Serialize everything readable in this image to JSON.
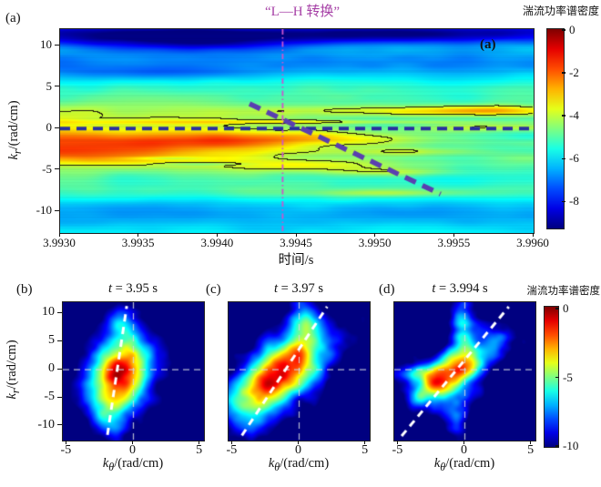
{
  "figure": {
    "outer_labels": {
      "a": "(a)",
      "b": "(b)",
      "c": "(c)",
      "d": "(d)"
    },
    "inner_label_a": "(a)",
    "title": "“L—H 转换”",
    "title_color": "#a640a6",
    "psd_label_top": "湍流功率谱密度",
    "psd_label_bottom": "湍流功率谱密度"
  },
  "chart_data": [
    {
      "id": "a",
      "type": "heatmap",
      "description": "Turbulence power spectral density S(kr,t) around the L-H transition",
      "xlabel": "时间/s",
      "ylabel_var": "k",
      "ylabel_sub": "r",
      "ylabel_rest": "/(rad/cm)",
      "xlim": [
        3.993,
        3.996
      ],
      "ylim": [
        -12.6,
        12.0
      ],
      "xticks": {
        "values": [
          3.993,
          3.9935,
          3.994,
          3.9945,
          3.995,
          3.9955,
          3.996
        ],
        "labels": [
          "3.9930",
          "3.9935",
          "3.9940",
          "3.9945",
          "3.9950",
          "3.9955",
          "3.9960"
        ]
      },
      "yticks": {
        "values": [
          10,
          5,
          0,
          -5,
          -10
        ],
        "labels": [
          "10",
          "5",
          "0",
          "-5",
          "-10"
        ]
      },
      "colorbar": {
        "label": "湍流功率谱密度",
        "range": [
          0,
          -9.3
        ],
        "ticks": {
          "values": [
            0,
            -2,
            -4,
            -6,
            -8
          ],
          "labels": [
            "0",
            "-2",
            "-4",
            "-6",
            "-8"
          ]
        }
      },
      "overlays": {
        "zero_line": {
          "k": 0,
          "color": "#2a2fa0"
        },
        "transition_line": {
          "t": 3.99441,
          "color": "#cc55cc"
        },
        "diagonal_line": {
          "from": [
            3.9942,
            3.0
          ],
          "to": [
            3.99541,
            -7.9
          ],
          "color": "#5a3fb0"
        }
      },
      "field": {
        "base": -5.4,
        "clim": [
          -9.25,
          -0.05
        ],
        "contour_level": -4,
        "bands": [
          {
            "c": 4.6,
            "s": 2.0,
            "a": 0.5
          },
          {
            "c": 8.0,
            "s": 2.0,
            "a": -1.1
          },
          {
            "c": 11.9,
            "s": 1.4,
            "a": -2.0
          },
          {
            "c": -10.3,
            "s": 1.6,
            "a": -0.9
          },
          {
            "c": -7.6,
            "s": 1.0,
            "a": 0.6
          }
        ],
        "ridge": {
          "c": -2.0,
          "s": 3.2,
          "amp_pre": 4.9,
          "amp_post": 1.35,
          "t0": 3.99435,
          "tw": 0.00022
        },
        "upper": {
          "c": 2.2,
          "s": 1.3,
          "amp_pre": 1.15,
          "amp_post": 0.85
        },
        "features": [
          {
            "t": 3.9934,
            "k": 10.8,
            "st": 0.0008,
            "sk": 1.2,
            "a": -1.7
          },
          {
            "t": 3.99405,
            "k": 10.2,
            "st": 0.0005,
            "sk": 1.0,
            "a": -1.3
          },
          {
            "t": 3.995,
            "k": 11.3,
            "st": 0.0013,
            "sk": 1.0,
            "a": -1.9
          },
          {
            "t": 3.9936,
            "k": 6.8,
            "st": 0.0006,
            "sk": 0.8,
            "a": -0.8
          },
          {
            "t": 3.9944,
            "k": 0.8,
            "st": 0.0015,
            "sk": 0.25,
            "a": 1.1
          },
          {
            "t": 3.9952,
            "k": 2.1,
            "st": 0.0008,
            "sk": 0.65,
            "a": 1.5
          },
          {
            "t": 3.9957,
            "k": 2.2,
            "st": 0.0004,
            "sk": 0.55,
            "a": 1.3
          },
          {
            "t": 3.9946,
            "k": -1.3,
            "st": 0.0008,
            "sk": 0.9,
            "a": 1.7
          },
          {
            "t": 3.9947,
            "k": -4.4,
            "st": 0.0007,
            "sk": 0.9,
            "a": 1.5
          },
          {
            "t": 3.9952,
            "k": -2.8,
            "st": 0.0005,
            "sk": 0.5,
            "a": 1.2
          },
          {
            "t": 3.9951,
            "k": -5.3,
            "st": 0.0004,
            "sk": 0.5,
            "a": 1.1
          },
          {
            "t": 3.99505,
            "k": -7.8,
            "st": 0.0005,
            "sk": 0.4,
            "a": 0.9
          },
          {
            "t": 3.9958,
            "k": 0.2,
            "st": 0.0004,
            "sk": 0.5,
            "a": 1.2
          },
          {
            "t": 3.99365,
            "k": -3.6,
            "st": 0.00025,
            "sk": 0.2,
            "a": -0.9
          },
          {
            "t": 3.9939,
            "k": -4.3,
            "st": 0.0003,
            "sk": 0.2,
            "a": -0.8
          }
        ],
        "noise_amp": 0.5,
        "streak_amp": 0.5,
        "seed": 11
      }
    },
    {
      "id": "b",
      "type": "heatmap",
      "title_var": "t",
      "title_rest": " = 3.95 s",
      "xlabel_var": "k",
      "xlabel_sub": "θ",
      "xlabel_rest": "/(rad/cm)",
      "ylabel_var": "k",
      "ylabel_sub": "r",
      "ylabel_rest": "/(rad/cm)",
      "xlim": [
        -5.3,
        5.3
      ],
      "ylim": [
        -12.6,
        12.0
      ],
      "xticks": {
        "values": [
          -5,
          0,
          5
        ],
        "labels": [
          "-5",
          "0",
          "5"
        ]
      },
      "yticks": {
        "values": [
          10,
          5,
          0,
          -5,
          -10
        ],
        "labels": [
          "10",
          "5",
          "0",
          "-5",
          "-10"
        ]
      },
      "clim": [
        -10,
        0
      ],
      "blob": {
        "cx": -1.15,
        "cy": -0.8,
        "shear": 0.065,
        "sx": 2.35,
        "sy": 7.0,
        "peak": 10.3
      },
      "arms": [
        {
          "x": -0.8,
          "sx": 1.3,
          "y": 9.0,
          "sy": 4.0,
          "a": 2.6
        },
        {
          "x": -1.6,
          "sx": 1.3,
          "y": -9.5,
          "sy": 3.5,
          "a": 2.4
        }
      ],
      "noise": {
        "amp": 1.55,
        "fx": 0.8,
        "fy": 0.36,
        "seed": 21
      },
      "white_line": {
        "x1": -1.95,
        "y1": -11.6,
        "x2": -0.5,
        "y2": 11.3
      },
      "crosshair": {
        "x": 0,
        "y": 0
      }
    },
    {
      "id": "c",
      "type": "heatmap",
      "title_var": "t",
      "title_rest": " = 3.97 s",
      "xlabel_var": "k",
      "xlabel_sub": "θ",
      "xlabel_rest": "/(rad/cm)",
      "xlim": [
        -5.3,
        5.3
      ],
      "ylim": [
        -12.6,
        12.0
      ],
      "xticks": {
        "values": [
          -5,
          0,
          5
        ],
        "labels": [
          "-5",
          "0",
          "5"
        ]
      },
      "clim": [
        -10,
        0
      ],
      "blob": {
        "cx": -1.5,
        "cy": -0.6,
        "shear": 0.28,
        "sx": 2.9,
        "sy": 7.5,
        "peak": 10.2
      },
      "arms": [
        {
          "x": 0.3,
          "sx": 1.2,
          "y": 9.5,
          "sy": 5.0,
          "a": 3.6
        },
        {
          "x": -3.6,
          "sx": 1.6,
          "y": -8.0,
          "sy": 3.5,
          "a": 2.2
        }
      ],
      "noise": {
        "amp": 1.6,
        "fx": 0.8,
        "fy": 0.36,
        "seed": 33
      },
      "white_line": {
        "x1": -4.3,
        "y1": -11.7,
        "x2": 2.1,
        "y2": 11.2
      },
      "crosshair": {
        "x": 0,
        "y": 0
      }
    },
    {
      "id": "d",
      "type": "heatmap",
      "title_var": "t",
      "title_rest": " = 3.994 s",
      "xlabel_var": "k",
      "xlabel_sub": "θ",
      "xlabel_rest": "/(rad/cm)",
      "xlim": [
        -5.3,
        5.3
      ],
      "ylim": [
        -12.6,
        12.0
      ],
      "xticks": {
        "values": [
          -5,
          0,
          5
        ],
        "labels": [
          "-5",
          "0",
          "5"
        ]
      },
      "clim": [
        -10,
        0
      ],
      "colorbar": {
        "label": "湍流功率谱密度",
        "range": [
          0,
          -10
        ],
        "ticks": {
          "values": [
            0,
            -5,
            -10
          ],
          "labels": [
            "0",
            "-5",
            "-10"
          ]
        }
      },
      "blob": {
        "cx": -1.2,
        "cy": -0.9,
        "shear": 0.35,
        "sx": 2.2,
        "sy": 5.2,
        "peak": 10.0
      },
      "arms": [
        {
          "x": -0.2,
          "sx": 1.0,
          "y": 8.5,
          "sy": 4.5,
          "a": 5.0
        },
        {
          "x": -0.6,
          "sx": 1.1,
          "y": -9.0,
          "sy": 4.0,
          "a": 3.4
        },
        {
          "x": -4.2,
          "sx": 1.8,
          "y": -0.6,
          "sy": 1.6,
          "a": 3.0
        },
        {
          "x": 2.6,
          "sx": 1.5,
          "y": 6.0,
          "sy": 3.0,
          "a": 2.4
        },
        {
          "x": 1.2,
          "sx": 1.2,
          "y": -4.0,
          "sy": 2.0,
          "a": 1.6
        }
      ],
      "noise": {
        "amp": 1.7,
        "fx": 0.85,
        "fy": 0.4,
        "seed": 55
      },
      "white_line": {
        "x1": -4.75,
        "y1": -11.8,
        "x2": 3.3,
        "y2": 11.2
      },
      "crosshair": {
        "x": 0,
        "y": 0
      }
    }
  ]
}
